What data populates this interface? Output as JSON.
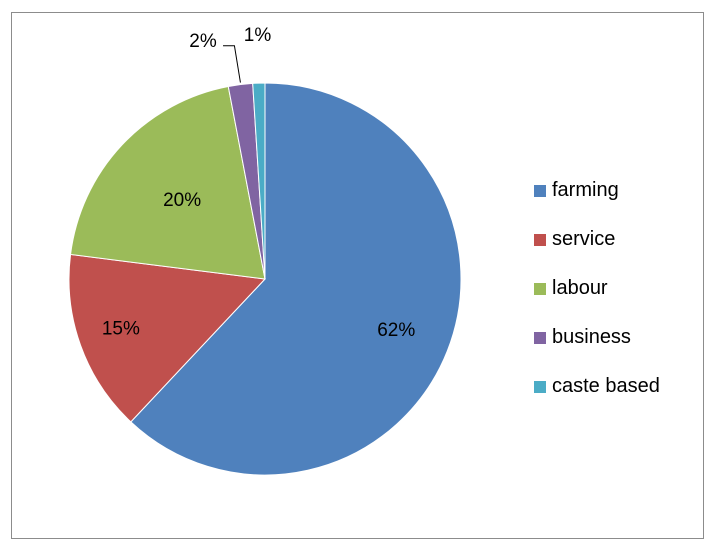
{
  "chart_data": {
    "type": "pie",
    "title": "",
    "legend_position": "right",
    "slices": [
      {
        "label": "farming",
        "value": 62,
        "display": "62%",
        "color": "#4F81BD"
      },
      {
        "label": "service",
        "value": 15,
        "display": "15%",
        "color": "#C0504D"
      },
      {
        "label": "labour",
        "value": 20,
        "display": "20%",
        "color": "#9BBB59"
      },
      {
        "label": "business",
        "value": 2,
        "display": "2%",
        "color": "#8064A2"
      },
      {
        "label": "caste based",
        "value": 1,
        "display": "1%",
        "color": "#4BACC6"
      }
    ]
  }
}
